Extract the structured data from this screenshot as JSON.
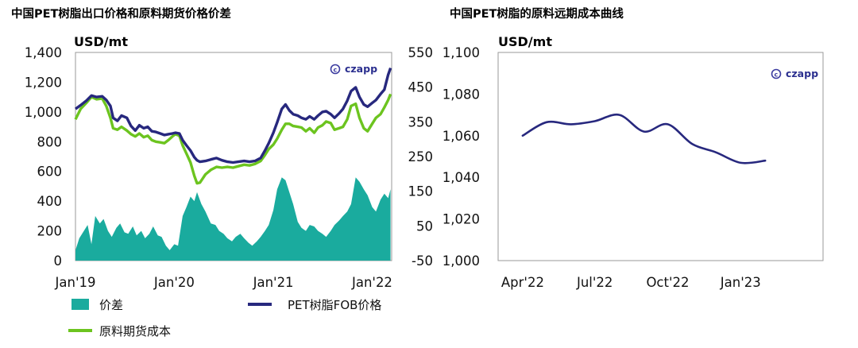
{
  "colors": {
    "spread": "#1aab9e",
    "pet_fob": "#27287e",
    "raw_futures": "#6cc41f",
    "forward_curve": "#27287e",
    "logo": "#3c3ca0"
  },
  "logo_text": "czapp",
  "chart_data": [
    {
      "type": "line",
      "title": "中国PET树脂出口价格和原料期货价格价差",
      "ylabel": "USD/mt",
      "ylim": [
        0,
        1400
      ],
      "yticks": [
        0,
        200,
        400,
        600,
        800,
        1000,
        1200,
        1400
      ],
      "ytick_labels": [
        "0",
        "200",
        "400",
        "600",
        "800",
        "1,000",
        "1,200",
        "1,400"
      ],
      "x_labels": [
        "Jan'19",
        "Jan'20",
        "Jan'21",
        "Jan'22"
      ],
      "legend": [
        "价差",
        "PET树脂FOB价格",
        "原料期货成本"
      ],
      "series": [
        {
          "name": "PET树脂FOB价格",
          "type": "line",
          "points": [
            [
              "2019-01-01",
              1020
            ],
            [
              "2019-01-20",
              1045
            ],
            [
              "2019-02-10",
              1075
            ],
            [
              "2019-03-01",
              1110
            ],
            [
              "2019-03-20",
              1100
            ],
            [
              "2019-04-10",
              1105
            ],
            [
              "2019-04-25",
              1080
            ],
            [
              "2019-05-10",
              1040
            ],
            [
              "2019-05-20",
              960
            ],
            [
              "2019-06-05",
              940
            ],
            [
              "2019-06-20",
              975
            ],
            [
              "2019-07-10",
              960
            ],
            [
              "2019-07-25",
              905
            ],
            [
              "2019-08-10",
              875
            ],
            [
              "2019-08-25",
              910
            ],
            [
              "2019-09-10",
              890
            ],
            [
              "2019-09-25",
              900
            ],
            [
              "2019-10-10",
              870
            ],
            [
              "2019-10-25",
              865
            ],
            [
              "2019-11-10",
              855
            ],
            [
              "2019-11-25",
              845
            ],
            [
              "2019-12-10",
              850
            ],
            [
              "2019-12-25",
              855
            ],
            [
              "2020-01-05",
              860
            ],
            [
              "2020-01-20",
              855
            ],
            [
              "2020-02-01",
              810
            ],
            [
              "2020-02-15",
              775
            ],
            [
              "2020-03-01",
              740
            ],
            [
              "2020-03-15",
              695
            ],
            [
              "2020-03-25",
              675
            ],
            [
              "2020-04-05",
              665
            ],
            [
              "2020-04-25",
              670
            ],
            [
              "2020-05-15",
              680
            ],
            [
              "2020-06-05",
              690
            ],
            [
              "2020-06-25",
              675
            ],
            [
              "2020-07-15",
              665
            ],
            [
              "2020-08-05",
              660
            ],
            [
              "2020-08-25",
              665
            ],
            [
              "2020-09-15",
              670
            ],
            [
              "2020-10-05",
              665
            ],
            [
              "2020-10-25",
              670
            ],
            [
              "2020-11-15",
              690
            ],
            [
              "2020-12-01",
              740
            ],
            [
              "2020-12-15",
              790
            ],
            [
              "2021-01-01",
              860
            ],
            [
              "2021-01-15",
              930
            ],
            [
              "2021-02-01",
              1020
            ],
            [
              "2021-02-15",
              1050
            ],
            [
              "2021-03-01",
              1010
            ],
            [
              "2021-03-15",
              985
            ],
            [
              "2021-04-01",
              975
            ],
            [
              "2021-04-15",
              960
            ],
            [
              "2021-05-01",
              950
            ],
            [
              "2021-05-15",
              970
            ],
            [
              "2021-06-01",
              950
            ],
            [
              "2021-06-15",
              975
            ],
            [
              "2021-07-01",
              1000
            ],
            [
              "2021-07-15",
              1005
            ],
            [
              "2021-08-01",
              985
            ],
            [
              "2021-08-15",
              960
            ],
            [
              "2021-09-01",
              990
            ],
            [
              "2021-09-15",
              1020
            ],
            [
              "2021-10-01",
              1075
            ],
            [
              "2021-10-15",
              1140
            ],
            [
              "2021-11-01",
              1165
            ],
            [
              "2021-11-15",
              1100
            ],
            [
              "2021-12-01",
              1050
            ],
            [
              "2021-12-15",
              1035
            ],
            [
              "2022-01-01",
              1060
            ],
            [
              "2022-01-15",
              1080
            ],
            [
              "2022-02-01",
              1120
            ],
            [
              "2022-02-15",
              1150
            ],
            [
              "2022-03-01",
              1250
            ],
            [
              "2022-03-10",
              1295
            ]
          ]
        },
        {
          "name": "原料期货成本",
          "type": "line",
          "points": [
            [
              "2019-01-01",
              950
            ],
            [
              "2019-01-20",
              1020
            ],
            [
              "2019-02-10",
              1060
            ],
            [
              "2019-03-01",
              1100
            ],
            [
              "2019-03-20",
              1085
            ],
            [
              "2019-04-10",
              1090
            ],
            [
              "2019-04-25",
              1040
            ],
            [
              "2019-05-10",
              960
            ],
            [
              "2019-05-20",
              890
            ],
            [
              "2019-06-05",
              880
            ],
            [
              "2019-06-20",
              900
            ],
            [
              "2019-07-10",
              875
            ],
            [
              "2019-07-25",
              850
            ],
            [
              "2019-08-10",
              835
            ],
            [
              "2019-08-25",
              855
            ],
            [
              "2019-09-10",
              830
            ],
            [
              "2019-09-25",
              840
            ],
            [
              "2019-10-10",
              810
            ],
            [
              "2019-10-25",
              800
            ],
            [
              "2019-11-10",
              795
            ],
            [
              "2019-11-25",
              790
            ],
            [
              "2019-12-10",
              810
            ],
            [
              "2019-12-25",
              835
            ],
            [
              "2020-01-05",
              850
            ],
            [
              "2020-01-20",
              840
            ],
            [
              "2020-02-01",
              775
            ],
            [
              "2020-02-15",
              720
            ],
            [
              "2020-03-01",
              660
            ],
            [
              "2020-03-15",
              570
            ],
            [
              "2020-03-25",
              520
            ],
            [
              "2020-04-05",
              525
            ],
            [
              "2020-04-25",
              580
            ],
            [
              "2020-05-15",
              610
            ],
            [
              "2020-06-05",
              630
            ],
            [
              "2020-06-25",
              625
            ],
            [
              "2020-07-15",
              630
            ],
            [
              "2020-08-05",
              625
            ],
            [
              "2020-08-25",
              635
            ],
            [
              "2020-09-15",
              645
            ],
            [
              "2020-10-05",
              640
            ],
            [
              "2020-10-25",
              650
            ],
            [
              "2020-11-15",
              670
            ],
            [
              "2020-12-01",
              710
            ],
            [
              "2020-12-15",
              750
            ],
            [
              "2021-01-01",
              780
            ],
            [
              "2021-01-15",
              820
            ],
            [
              "2021-02-01",
              880
            ],
            [
              "2021-02-15",
              920
            ],
            [
              "2021-03-01",
              920
            ],
            [
              "2021-03-15",
              905
            ],
            [
              "2021-04-01",
              900
            ],
            [
              "2021-04-15",
              895
            ],
            [
              "2021-05-01",
              870
            ],
            [
              "2021-05-15",
              890
            ],
            [
              "2021-06-01",
              860
            ],
            [
              "2021-06-15",
              895
            ],
            [
              "2021-07-01",
              910
            ],
            [
              "2021-07-15",
              935
            ],
            [
              "2021-08-01",
              925
            ],
            [
              "2021-08-15",
              880
            ],
            [
              "2021-09-01",
              890
            ],
            [
              "2021-09-15",
              900
            ],
            [
              "2021-10-01",
              950
            ],
            [
              "2021-10-15",
              1040
            ],
            [
              "2021-11-01",
              1055
            ],
            [
              "2021-11-15",
              960
            ],
            [
              "2021-12-01",
              890
            ],
            [
              "2021-12-15",
              870
            ],
            [
              "2022-01-01",
              920
            ],
            [
              "2022-01-15",
              960
            ],
            [
              "2022-02-01",
              985
            ],
            [
              "2022-02-15",
              1030
            ],
            [
              "2022-03-01",
              1080
            ],
            [
              "2022-03-10",
              1120
            ]
          ]
        },
        {
          "name": "价差",
          "type": "area",
          "points": [
            [
              "2019-01-01",
              70
            ],
            [
              "2019-01-15",
              150
            ],
            [
              "2019-02-01",
              200
            ],
            [
              "2019-02-15",
              240
            ],
            [
              "2019-03-01",
              110
            ],
            [
              "2019-03-15",
              300
            ],
            [
              "2019-04-01",
              250
            ],
            [
              "2019-04-15",
              280
            ],
            [
              "2019-05-01",
              200
            ],
            [
              "2019-05-15",
              160
            ],
            [
              "2019-06-01",
              220
            ],
            [
              "2019-06-15",
              250
            ],
            [
              "2019-07-01",
              190
            ],
            [
              "2019-07-15",
              180
            ],
            [
              "2019-08-01",
              230
            ],
            [
              "2019-08-15",
              170
            ],
            [
              "2019-09-01",
              200
            ],
            [
              "2019-09-15",
              150
            ],
            [
              "2019-10-01",
              180
            ],
            [
              "2019-10-15",
              230
            ],
            [
              "2019-11-01",
              170
            ],
            [
              "2019-11-15",
              160
            ],
            [
              "2019-12-01",
              100
            ],
            [
              "2019-12-15",
              70
            ],
            [
              "2020-01-01",
              110
            ],
            [
              "2020-01-15",
              100
            ],
            [
              "2020-02-01",
              300
            ],
            [
              "2020-02-15",
              360
            ],
            [
              "2020-03-01",
              430
            ],
            [
              "2020-03-15",
              400
            ],
            [
              "2020-03-25",
              460
            ],
            [
              "2020-04-10",
              380
            ],
            [
              "2020-04-25",
              330
            ],
            [
              "2020-05-15",
              250
            ],
            [
              "2020-06-01",
              240
            ],
            [
              "2020-06-15",
              200
            ],
            [
              "2020-07-01",
              180
            ],
            [
              "2020-07-15",
              150
            ],
            [
              "2020-08-01",
              130
            ],
            [
              "2020-08-15",
              160
            ],
            [
              "2020-09-01",
              180
            ],
            [
              "2020-09-15",
              150
            ],
            [
              "2020-10-01",
              120
            ],
            [
              "2020-10-15",
              100
            ],
            [
              "2020-11-01",
              130
            ],
            [
              "2020-11-15",
              160
            ],
            [
              "2020-12-01",
              200
            ],
            [
              "2020-12-15",
              240
            ],
            [
              "2021-01-01",
              340
            ],
            [
              "2021-01-15",
              480
            ],
            [
              "2021-02-01",
              560
            ],
            [
              "2021-02-15",
              540
            ],
            [
              "2021-03-01",
              460
            ],
            [
              "2021-03-15",
              380
            ],
            [
              "2021-04-01",
              260
            ],
            [
              "2021-04-15",
              220
            ],
            [
              "2021-05-01",
              200
            ],
            [
              "2021-05-15",
              240
            ],
            [
              "2021-06-01",
              230
            ],
            [
              "2021-06-15",
              200
            ],
            [
              "2021-07-01",
              180
            ],
            [
              "2021-07-15",
              160
            ],
            [
              "2021-08-01",
              200
            ],
            [
              "2021-08-15",
              240
            ],
            [
              "2021-09-01",
              270
            ],
            [
              "2021-09-15",
              300
            ],
            [
              "2021-10-01",
              330
            ],
            [
              "2021-10-15",
              380
            ],
            [
              "2021-11-01",
              560
            ],
            [
              "2021-11-15",
              530
            ],
            [
              "2021-12-01",
              480
            ],
            [
              "2021-12-15",
              440
            ],
            [
              "2022-01-01",
              360
            ],
            [
              "2022-01-15",
              330
            ],
            [
              "2022-02-01",
              410
            ],
            [
              "2022-02-15",
              450
            ],
            [
              "2022-03-01",
              420
            ],
            [
              "2022-03-10",
              480
            ]
          ]
        }
      ]
    },
    {
      "type": "line",
      "title": "中国PET树脂的原料远期成本曲线",
      "ylabel": "USD/mt",
      "ylim": [
        1000,
        1100
      ],
      "yticks": [
        1000,
        1020,
        1040,
        1060,
        1080,
        1100
      ],
      "ytick_labels": [
        "1,000",
        "1,020",
        "1,040",
        "1,060",
        "1,080",
        "1,100"
      ],
      "secondary_ytick_labels": [
        "-50",
        "50",
        "150",
        "250",
        "350",
        "450",
        "550"
      ],
      "x_labels": [
        "Apr'22",
        "Jul'22",
        "Oct'22",
        "Jan'23"
      ],
      "series": [
        {
          "type": "line",
          "points": [
            [
              "2022-04-01",
              1060
            ],
            [
              "2022-05-01",
              1066.5
            ],
            [
              "2022-06-01",
              1065.5
            ],
            [
              "2022-07-01",
              1067
            ],
            [
              "2022-08-01",
              1070
            ],
            [
              "2022-09-01",
              1062
            ],
            [
              "2022-10-01",
              1065.5
            ],
            [
              "2022-11-01",
              1056
            ],
            [
              "2022-12-01",
              1052
            ],
            [
              "2023-01-01",
              1047
            ],
            [
              "2023-02-01",
              1048
            ]
          ]
        }
      ]
    }
  ]
}
